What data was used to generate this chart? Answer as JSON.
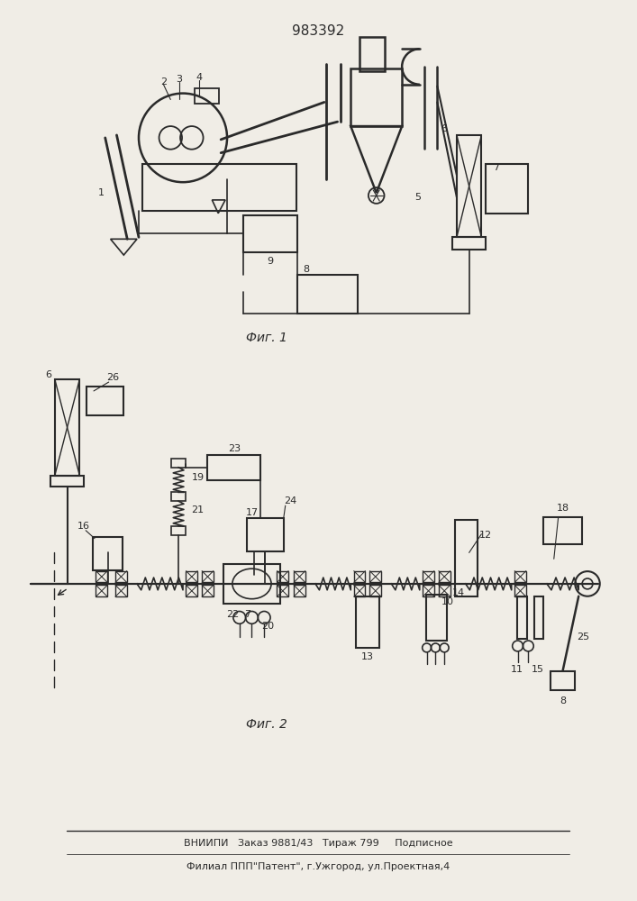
{
  "title": "983392",
  "fig1_label": "Фиг. 1",
  "fig2_label": "Фиг. 2",
  "footer1": "ВНИИПИ   Заказ 9881/43   Тираж 799     Подписное",
  "footer2": "Филиал ППП\"Патент\", г.Ужгород, ул.Проектная,4",
  "bg_color": "#f0ede6",
  "line_color": "#2a2a2a"
}
